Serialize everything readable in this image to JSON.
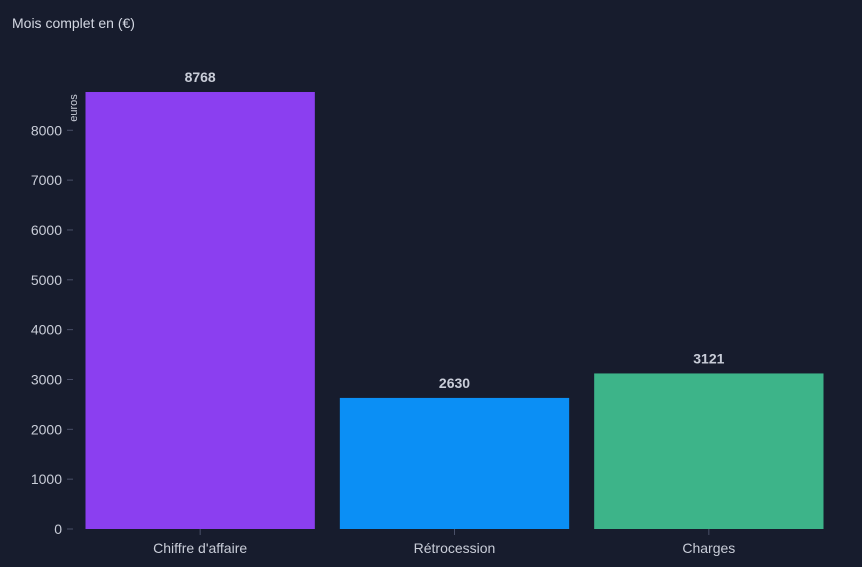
{
  "chart_data": {
    "type": "bar",
    "title": "Mois complet en (€)",
    "xlabel": "",
    "ylabel": "euros",
    "categories": [
      "Chiffre d'affaire",
      "Rétrocession",
      "Charges"
    ],
    "values": [
      8768,
      2630,
      3121
    ],
    "colors": [
      "#8b3ff0",
      "#0b8ff5",
      "#3db489"
    ],
    "ylim": [
      0,
      8768
    ],
    "yticks": [
      0,
      1000,
      2000,
      3000,
      4000,
      5000,
      6000,
      7000,
      8000
    ],
    "grid": false,
    "legend": "none",
    "data_labels": true
  },
  "theme": {
    "background": "#171c2d",
    "text": "#c9cdd8",
    "tick_mark": "#4a5068"
  }
}
